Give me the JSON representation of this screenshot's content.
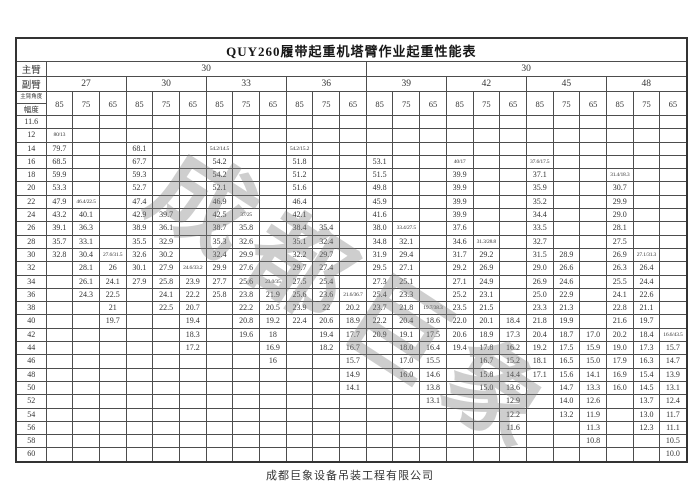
{
  "title": "QUY260履带起重机塔臂作业起重性能表",
  "watermark": "成都巨象",
  "footer": "成都巨象设备吊装工程有限公司",
  "header": {
    "main_boom_label": "主臂",
    "jib_label": "副臂",
    "angle_label": "主臂角度",
    "radius_label": "幅度",
    "main_boom_groups": [
      {
        "value": "30",
        "span": 12
      },
      {
        "value": "30",
        "span": 12
      }
    ],
    "jib_groups": [
      "27",
      "30",
      "33",
      "36",
      "39",
      "42",
      "45",
      "48"
    ],
    "angles": [
      "85",
      "75",
      "65"
    ]
  },
  "rows": [
    {
      "radius": "11.6",
      "values": [
        "",
        "",
        "",
        "",
        "",
        "",
        "",
        "",
        "",
        "",
        "",
        "",
        "",
        "",
        "",
        "",
        "",
        "",
        "",
        "",
        "",
        "",
        "",
        ""
      ]
    },
    {
      "radius": "12",
      "values": [
        "80/13",
        "",
        "",
        "",
        "",
        "",
        "",
        "",
        "",
        "",
        "",
        "",
        "",
        "",
        "",
        "",
        "",
        "",
        "",
        "",
        "",
        "",
        "",
        ""
      ]
    },
    {
      "radius": "14",
      "values": [
        "79.7",
        "",
        "",
        "68.1",
        "",
        "",
        "54.2/14.5",
        "",
        "",
        "54.2/15.2",
        "",
        "",
        "",
        "",
        "",
        "",
        "",
        "",
        "",
        "",
        "",
        "",
        "",
        ""
      ]
    },
    {
      "radius": "16",
      "values": [
        "68.5",
        "",
        "",
        "67.7",
        "",
        "",
        "54.2",
        "",
        "",
        "51.8",
        "",
        "",
        "53.1",
        "",
        "",
        "40/17",
        "",
        "",
        "37.6/17.5",
        "",
        "",
        "",
        "",
        ""
      ]
    },
    {
      "radius": "18",
      "values": [
        "59.9",
        "",
        "",
        "59.3",
        "",
        "",
        "54.2",
        "",
        "",
        "51.2",
        "",
        "",
        "51.5",
        "",
        "",
        "39.9",
        "",
        "",
        "37.1",
        "",
        "",
        "31.4/18.3",
        "",
        ""
      ]
    },
    {
      "radius": "20",
      "values": [
        "53.3",
        "",
        "",
        "52.7",
        "",
        "",
        "52.1",
        "",
        "",
        "51.6",
        "",
        "",
        "49.8",
        "",
        "",
        "39.9",
        "",
        "",
        "35.9",
        "",
        "",
        "30.7",
        "",
        ""
      ]
    },
    {
      "radius": "22",
      "values": [
        "47.9",
        "46.4/22.5",
        "",
        "47.4",
        "",
        "",
        "46.9",
        "",
        "",
        "46.4",
        "",
        "",
        "45.9",
        "",
        "",
        "39.9",
        "",
        "",
        "35.2",
        "",
        "",
        "29.9",
        "",
        ""
      ]
    },
    {
      "radius": "24",
      "values": [
        "43.2",
        "40.1",
        "",
        "42.9",
        "39.7",
        "",
        "42.5",
        "37/25",
        "",
        "42.1",
        "",
        "",
        "41.6",
        "",
        "",
        "39.9",
        "",
        "",
        "34.4",
        "",
        "",
        "29.0",
        "",
        ""
      ]
    },
    {
      "radius": "26",
      "values": [
        "39.1",
        "36.3",
        "",
        "38.9",
        "36.1",
        "",
        "38.7",
        "35.8",
        "",
        "38.4",
        "35.4",
        "",
        "38.0",
        "33.4/27.5",
        "",
        "37.6",
        "",
        "",
        "33.5",
        "",
        "",
        "28.1",
        "",
        ""
      ]
    },
    {
      "radius": "28",
      "values": [
        "35.7",
        "33.1",
        "",
        "35.5",
        "32.9",
        "",
        "35.3",
        "32.6",
        "",
        "35.1",
        "32.4",
        "",
        "34.8",
        "32.1",
        "",
        "34.6",
        "31.3/28.8",
        "",
        "32.7",
        "",
        "",
        "27.5",
        "",
        ""
      ]
    },
    {
      "radius": "30",
      "values": [
        "32.8",
        "30.4",
        "27.6/31.5",
        "32.6",
        "30.2",
        "",
        "32.4",
        "29.9",
        "",
        "32.2",
        "29.7",
        "",
        "31.9",
        "29.4",
        "",
        "31.7",
        "29.2",
        "",
        "31.5",
        "28.9",
        "",
        "26.9",
        "27.1/31.3",
        ""
      ]
    },
    {
      "radius": "32",
      "values": [
        "",
        "28.1",
        "26",
        "30.1",
        "27.9",
        "24.6/33.2",
        "29.9",
        "27.6",
        "",
        "29.7",
        "27.4",
        "",
        "29.5",
        "27.1",
        "",
        "29.2",
        "26.9",
        "",
        "29.0",
        "26.6",
        "",
        "26.3",
        "26.4",
        ""
      ]
    },
    {
      "radius": "34",
      "values": [
        "",
        "26.1",
        "24.1",
        "27.9",
        "25.8",
        "23.9",
        "27.7",
        "25.6",
        "23.0/35",
        "27.5",
        "25.4",
        "",
        "27.3",
        "25.1",
        "",
        "27.1",
        "24.9",
        "",
        "26.9",
        "24.6",
        "",
        "25.5",
        "24.4",
        ""
      ]
    },
    {
      "radius": "36",
      "values": [
        "",
        "24.3",
        "22.5",
        "",
        "24.1",
        "22.2",
        "25.8",
        "23.8",
        "21.9",
        "25.6",
        "23.6",
        "21.6/36.7",
        "25.4",
        "23.3",
        "",
        "25.2",
        "23.1",
        "",
        "25.0",
        "22.9",
        "",
        "24.1",
        "22.6",
        ""
      ]
    },
    {
      "radius": "38",
      "values": [
        "",
        "",
        "21",
        "",
        "22.5",
        "20.7",
        "",
        "22.2",
        "20.5",
        "23.9",
        "22",
        "20.2",
        "23.7",
        "21.8",
        "19.7/38.3",
        "23.5",
        "21.5",
        "",
        "23.3",
        "21.3",
        "",
        "22.8",
        "21.1",
        ""
      ]
    },
    {
      "radius": "40",
      "values": [
        "",
        "",
        "19.7",
        "",
        "",
        "19.4",
        "",
        "20.8",
        "19.2",
        "22.4",
        "20.6",
        "18.9",
        "22.2",
        "20.4",
        "18.6",
        "22.0",
        "20.1",
        "18.4",
        "21.8",
        "19.9",
        "",
        "21.6",
        "19.7",
        ""
      ]
    },
    {
      "radius": "42",
      "values": [
        "",
        "",
        "",
        "",
        "",
        "18.3",
        "",
        "19.6",
        "18",
        "",
        "19.4",
        "17.7",
        "20.9",
        "19.1",
        "17.5",
        "20.6",
        "18.9",
        "17.3",
        "20.4",
        "18.7",
        "17.0",
        "20.2",
        "18.4",
        "16.6/43.5"
      ]
    },
    {
      "radius": "44",
      "values": [
        "",
        "",
        "",
        "",
        "",
        "17.2",
        "",
        "",
        "16.9",
        "",
        "18.2",
        "16.7",
        "",
        "18.0",
        "16.4",
        "19.4",
        "17.8",
        "16.2",
        "19.2",
        "17.5",
        "15.9",
        "19.0",
        "17.3",
        "15.7"
      ]
    },
    {
      "radius": "46",
      "values": [
        "",
        "",
        "",
        "",
        "",
        "",
        "",
        "",
        "16",
        "",
        "",
        "15.7",
        "",
        "17.0",
        "15.5",
        "",
        "16.7",
        "15.2",
        "18.1",
        "16.5",
        "15.0",
        "17.9",
        "16.3",
        "14.7"
      ]
    },
    {
      "radius": "48",
      "values": [
        "",
        "",
        "",
        "",
        "",
        "",
        "",
        "",
        "",
        "",
        "",
        "14.9",
        "",
        "16.0",
        "14.6",
        "",
        "15.8",
        "14.4",
        "17.1",
        "15.6",
        "14.1",
        "16.9",
        "15.4",
        "13.9"
      ]
    },
    {
      "radius": "50",
      "values": [
        "",
        "",
        "",
        "",
        "",
        "",
        "",
        "",
        "",
        "",
        "",
        "14.1",
        "",
        "",
        "13.8",
        "",
        "15.0",
        "13.6",
        "",
        "14.7",
        "13.3",
        "16.0",
        "14.5",
        "13.1"
      ]
    },
    {
      "radius": "52",
      "values": [
        "",
        "",
        "",
        "",
        "",
        "",
        "",
        "",
        "",
        "",
        "",
        "",
        "",
        "",
        "13.1",
        "",
        "",
        "12.9",
        "",
        "14.0",
        "12.6",
        "",
        "13.7",
        "12.4"
      ]
    },
    {
      "radius": "54",
      "values": [
        "",
        "",
        "",
        "",
        "",
        "",
        "",
        "",
        "",
        "",
        "",
        "",
        "",
        "",
        "",
        "",
        "",
        "12.2",
        "",
        "13.2",
        "11.9",
        "",
        "13.0",
        "11.7"
      ]
    },
    {
      "radius": "56",
      "values": [
        "",
        "",
        "",
        "",
        "",
        "",
        "",
        "",
        "",
        "",
        "",
        "",
        "",
        "",
        "",
        "",
        "",
        "11.6",
        "",
        "",
        "11.3",
        "",
        "12.3",
        "11.1"
      ]
    },
    {
      "radius": "58",
      "values": [
        "",
        "",
        "",
        "",
        "",
        "",
        "",
        "",
        "",
        "",
        "",
        "",
        "",
        "",
        "",
        "",
        "",
        "",
        "",
        "",
        "10.8",
        "",
        "",
        "10.5"
      ]
    },
    {
      "radius": "60",
      "values": [
        "",
        "",
        "",
        "",
        "",
        "",
        "",
        "",
        "",
        "",
        "",
        "",
        "",
        "",
        "",
        "",
        "",
        "",
        "",
        "",
        "",
        "",
        "",
        "10.0"
      ]
    }
  ]
}
